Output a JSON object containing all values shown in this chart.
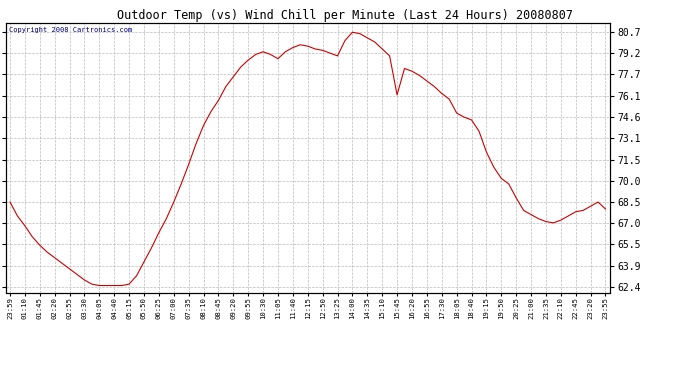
{
  "title": "Outdoor Temp (vs) Wind Chill per Minute (Last 24 Hours) 20080807",
  "copyright": "Copyright 2008 Cartronics.com",
  "line_color": "#cc0000",
  "bg_color": "#ffffff",
  "grid_color": "#bbbbbb",
  "yticks": [
    62.4,
    63.9,
    65.5,
    67.0,
    68.5,
    70.0,
    71.5,
    73.1,
    74.6,
    76.1,
    77.7,
    79.2,
    80.7
  ],
  "ylim": [
    62.0,
    81.4
  ],
  "xtick_labels": [
    "23:59",
    "01:10",
    "01:45",
    "02:20",
    "02:55",
    "03:30",
    "04:05",
    "04:40",
    "05:15",
    "05:50",
    "06:25",
    "07:00",
    "07:35",
    "08:10",
    "08:45",
    "09:20",
    "09:55",
    "10:30",
    "11:05",
    "11:40",
    "12:15",
    "12:50",
    "13:25",
    "14:00",
    "14:35",
    "15:10",
    "15:45",
    "16:20",
    "16:55",
    "17:30",
    "18:05",
    "18:40",
    "19:15",
    "19:50",
    "20:25",
    "21:00",
    "21:35",
    "22:10",
    "22:45",
    "23:20",
    "23:55"
  ],
  "curve_y": [
    68.5,
    67.5,
    66.8,
    66.0,
    65.4,
    64.9,
    64.5,
    64.1,
    63.7,
    63.3,
    62.9,
    62.6,
    62.5,
    62.5,
    62.5,
    62.5,
    62.6,
    63.2,
    64.2,
    65.2,
    66.3,
    67.3,
    68.5,
    69.8,
    71.2,
    72.7,
    74.0,
    75.0,
    75.8,
    76.8,
    77.5,
    78.2,
    78.7,
    79.1,
    79.3,
    79.1,
    78.8,
    79.3,
    79.6,
    79.8,
    79.7,
    79.5,
    79.4,
    79.2,
    79.0,
    80.1,
    80.7,
    80.6,
    80.3,
    80.0,
    79.5,
    79.0,
    76.2,
    78.1,
    77.9,
    77.6,
    77.2,
    76.8,
    76.3,
    75.9,
    74.9,
    74.6,
    74.4,
    73.6,
    72.1,
    71.0,
    70.2,
    69.8,
    68.8,
    67.9,
    67.6,
    67.3,
    67.1,
    67.0,
    67.2,
    67.5,
    67.8,
    67.9,
    68.2,
    68.5,
    68.0
  ]
}
